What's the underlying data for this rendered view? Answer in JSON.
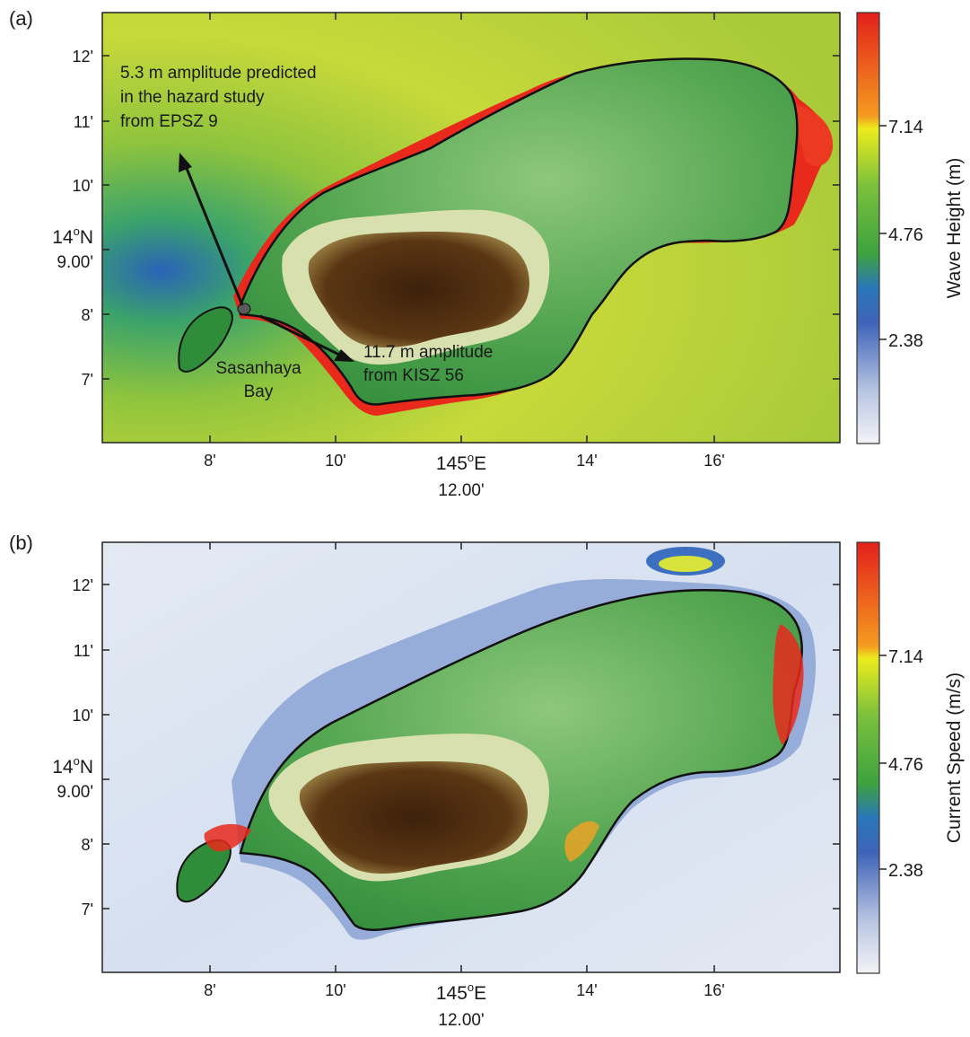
{
  "panels": [
    {
      "letter": "(a)",
      "colorbar_label": "Wave Height (m)",
      "colorbar_ticks": [
        "7.14",
        "4.76",
        "2.38"
      ],
      "annotations": {
        "epsz_line1": "5.3 m amplitude predicted",
        "epsz_line2": "in the hazard study",
        "epsz_line3": "from EPSZ 9",
        "kisz_line1": "11.7 m amplitude",
        "kisz_line2": "from KISZ 56",
        "bay_line1": "Sasanhaya",
        "bay_line2": "Bay"
      }
    },
    {
      "letter": "(b)",
      "colorbar_label": "Current Speed (m/s)",
      "colorbar_ticks": [
        "7.14",
        "4.76",
        "2.38"
      ]
    }
  ],
  "axes": {
    "y_ticks": [
      "12'",
      "11'",
      "10'",
      "8'",
      "7'"
    ],
    "y_center_line1": "14",
    "y_center_sup": "o",
    "y_center_n": "N",
    "y_center_line2": "9.00'",
    "x_ticks": [
      "8'",
      "10'",
      "14'",
      "16'"
    ],
    "x_center_line1": "145",
    "x_center_sup": "o",
    "x_center_e": "E",
    "x_center_line2": "12.00'"
  },
  "colors": {
    "ocean_a": "#b7cf3c",
    "ocean_b": "#dde6f3",
    "inundation": "#e8291c",
    "land_green": "#2f8d3a",
    "land_brown": "#4a2a10"
  }
}
